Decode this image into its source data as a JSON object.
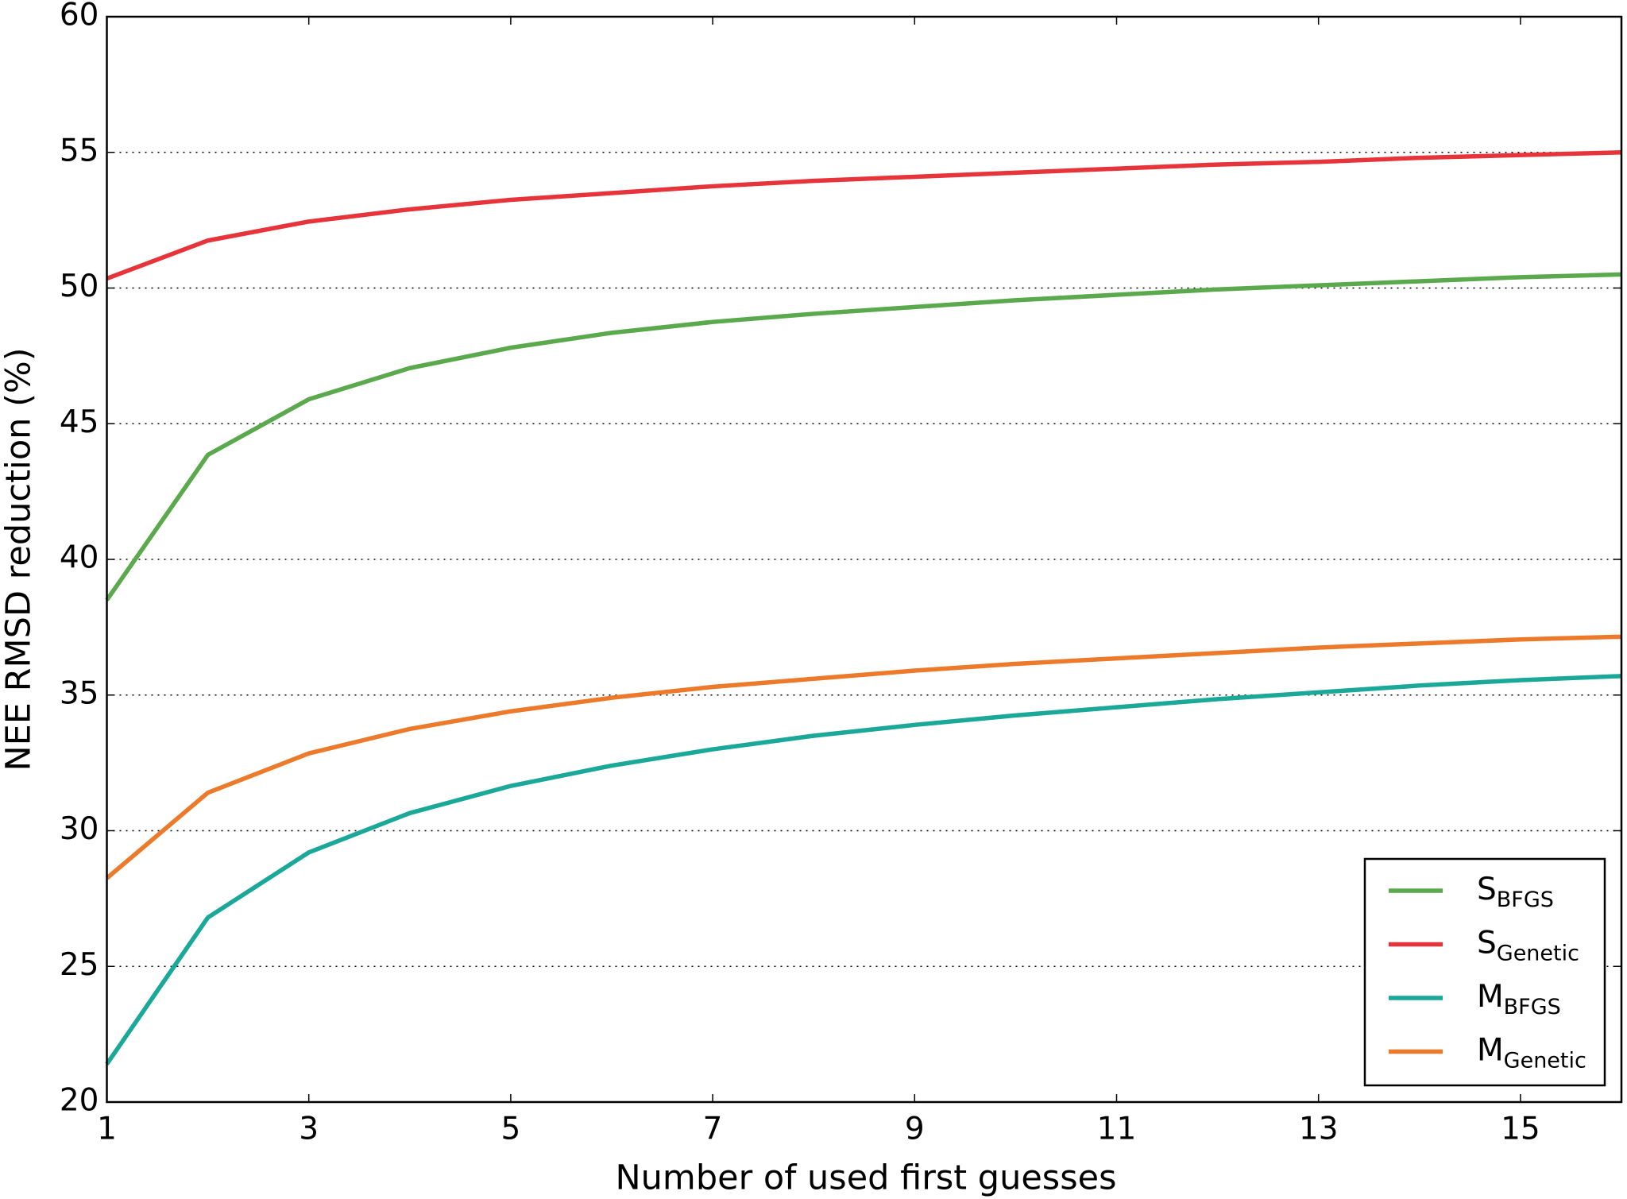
{
  "chart_data": {
    "type": "line",
    "x_label": "Number of used first guesses",
    "y_label": "NEE RMSD reduction (%)",
    "x": [
      1,
      2,
      3,
      4,
      5,
      6,
      7,
      8,
      9,
      10,
      11,
      12,
      13,
      14,
      15,
      16
    ],
    "xlim": [
      1,
      16
    ],
    "xticks": [
      1,
      3,
      5,
      7,
      9,
      11,
      13,
      15
    ],
    "ylim": [
      20,
      60
    ],
    "yticks": [
      20,
      25,
      30,
      35,
      40,
      45,
      50,
      55,
      60
    ],
    "grid": true,
    "legend": "lower right",
    "series": [
      {
        "name": "S",
        "subscript": "BFGS",
        "color": "#5aa94c",
        "values": [
          38.5,
          43.85,
          45.9,
          47.05,
          47.8,
          48.35,
          48.75,
          49.05,
          49.3,
          49.55,
          49.75,
          49.95,
          50.1,
          50.25,
          50.4,
          50.5
        ]
      },
      {
        "name": "S",
        "subscript": "Genetic",
        "color": "#e6343a",
        "values": [
          50.35,
          51.75,
          52.45,
          52.9,
          53.25,
          53.5,
          53.75,
          53.95,
          54.1,
          54.25,
          54.4,
          54.55,
          54.65,
          54.8,
          54.9,
          55.0
        ]
      },
      {
        "name": "M",
        "subscript": "BFGS",
        "color": "#1aa898",
        "values": [
          21.4,
          26.8,
          29.2,
          30.65,
          31.65,
          32.4,
          33.0,
          33.5,
          33.9,
          34.25,
          34.55,
          34.85,
          35.1,
          35.35,
          35.55,
          35.7
        ]
      },
      {
        "name": "M",
        "subscript": "Genetic",
        "color": "#ec7a2a",
        "values": [
          28.25,
          31.4,
          32.85,
          33.75,
          34.4,
          34.9,
          35.3,
          35.6,
          35.9,
          36.15,
          36.35,
          36.55,
          36.75,
          36.9,
          37.05,
          37.15
        ]
      }
    ]
  }
}
